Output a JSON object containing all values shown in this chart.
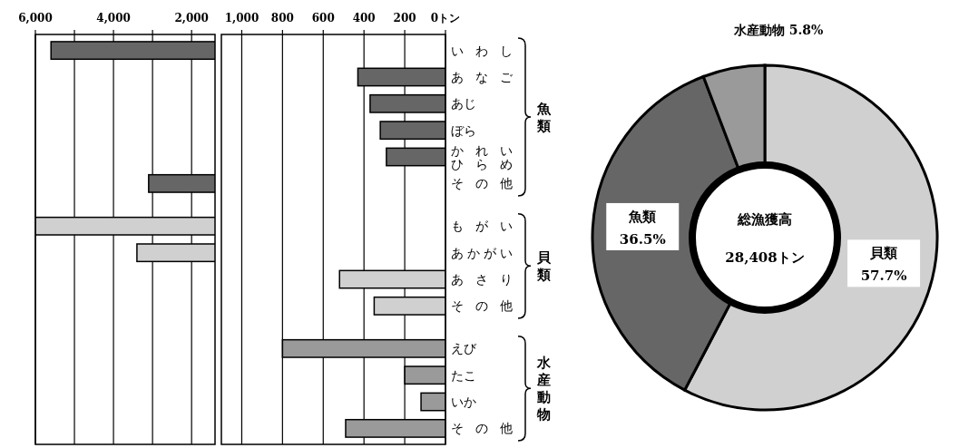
{
  "chart_data": [
    {
      "type": "bar",
      "orientation": "horizontal",
      "categories": [
        "いわし",
        "あなご",
        "あじ",
        "ぼら",
        "かれいひらめ",
        "その他",
        null,
        "もがい",
        "あかがい",
        "あさり",
        "その他",
        null,
        "えび",
        "たこ",
        "いか",
        "その他"
      ],
      "series": [
        {
          "color": "#666666",
          "values": [
            5600,
            null,
            null,
            null,
            null,
            3100,
            null,
            null,
            null,
            null,
            null,
            null,
            null,
            null,
            null,
            null
          ]
        },
        {
          "color": "#d0d0d0",
          "values": [
            null,
            null,
            null,
            null,
            null,
            null,
            null,
            6000,
            3400,
            null,
            null,
            null,
            null,
            null,
            null,
            null
          ]
        }
      ],
      "xlim": [
        6000,
        1400
      ],
      "xticks": [
        {
          "value": 6000,
          "label": "6,000"
        },
        {
          "value": 5000,
          "label": null
        },
        {
          "value": 4000,
          "label": "4,000"
        },
        {
          "value": 3000,
          "label": null
        },
        {
          "value": 2000,
          "label": "2,000"
        }
      ],
      "grid": "x",
      "tick_labels": "x"
    },
    {
      "type": "bar",
      "orientation": "horizontal",
      "categories": [
        "いわし",
        "あなご",
        "あじ",
        "ぼら",
        "かれいひらめ",
        "その他",
        null,
        "もがい",
        "あかがい",
        "あさり",
        "その他",
        null,
        "えび",
        "たこ",
        "いか",
        "その他"
      ],
      "series": [
        {
          "name": "魚類",
          "color": "#666666",
          "values": [
            null,
            430,
            370,
            320,
            290,
            null,
            null,
            null,
            null,
            null,
            null,
            null,
            null,
            null,
            null,
            null
          ]
        },
        {
          "name": "貝類",
          "color": "#d0d0d0",
          "values": [
            null,
            null,
            null,
            null,
            null,
            null,
            null,
            null,
            null,
            520,
            350,
            null,
            null,
            null,
            null,
            null
          ]
        },
        {
          "name": "水産動物",
          "color": "#9a9a9a",
          "values": [
            null,
            null,
            null,
            null,
            null,
            null,
            null,
            null,
            null,
            null,
            null,
            null,
            800,
            200,
            120,
            490
          ]
        }
      ],
      "xlim": [
        1100,
        0
      ],
      "xticks": [
        {
          "value": 1000,
          "label": "1,000"
        },
        800,
        600,
        400,
        200,
        {
          "value": 0,
          "label": "0トン"
        }
      ],
      "grid": "x"
    },
    {
      "type": "donut",
      "categories": [
        "貝類",
        "魚類",
        "水産動物"
      ],
      "values": [
        57.7,
        36.5,
        5.8
      ],
      "colors": [
        "#d0d0d0",
        "#666666",
        "#9a9a9a"
      ],
      "value_labels": [
        "57.7%",
        "36.5%",
        "5.8%"
      ],
      "annotations": [
        "総漁獲高",
        "28,408トン"
      ]
    }
  ]
}
